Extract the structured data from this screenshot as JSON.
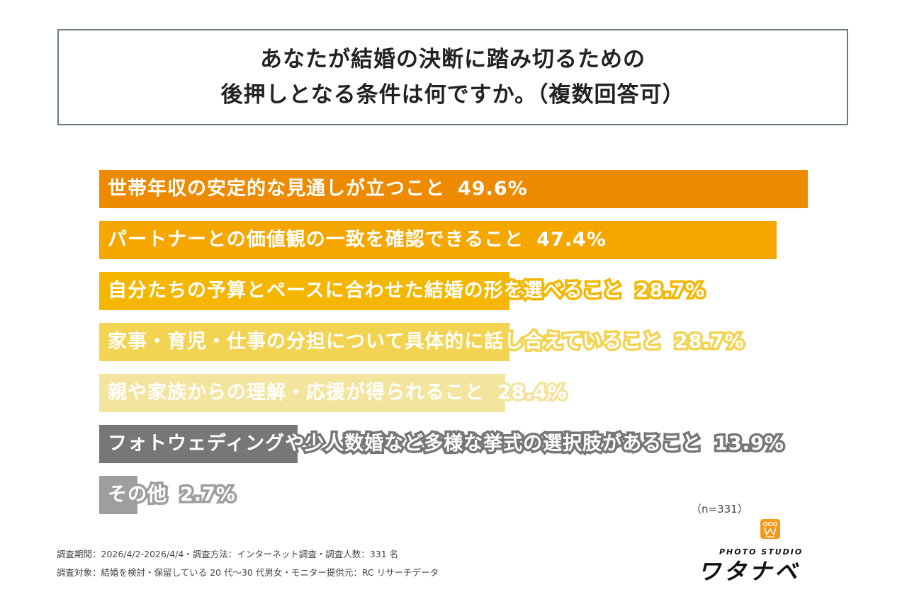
{
  "title": {
    "line1": "あなたが結婚の決断に踏み切るための",
    "line2": "後押しとなる条件は何ですか。（複数回答可）"
  },
  "chart_data": {
    "type": "bar",
    "orientation": "horizontal",
    "categories": [
      "世帯年収の安定的な見通しが立つこと",
      "パートナーとの価値観の一致を確認できること",
      "自分たちの予算とペースに合わせた結婚の形を選べること",
      "家事・育児・仕事の分担について具体的に話し合えていること",
      "親や家族からの理解・応援が得られること",
      "フォトウェディングや少人数婚など多様な挙式の選択肢があること",
      "その他"
    ],
    "values": [
      49.6,
      47.4,
      28.7,
      28.7,
      28.4,
      13.9,
      2.7
    ],
    "value_labels": [
      "49.6%",
      "47.4%",
      "28.7%",
      "28.7%",
      "28.4%",
      "13.9%",
      "2.7%"
    ],
    "colors": [
      "#EE8A00",
      "#F5A700",
      "#F5B600",
      "#F2D452",
      "#F3E49E",
      "#777777",
      "#9E9E9E"
    ],
    "grid": false
  },
  "sample": "（n=331）",
  "notes": [
    "調査期間：2026/4/2-2026/4/4・調査方法：インターネット調査・調査人数：331 名",
    "調査対象：結婚を検討・保留している 20 代～30 代男女・モニター提供元：RC リサーチデータ"
  ],
  "logo": {
    "line1": "PHOTO STUDIO",
    "line2": "ワタナベ",
    "icon": "crown-w-icon",
    "color": "#F39A1E"
  }
}
